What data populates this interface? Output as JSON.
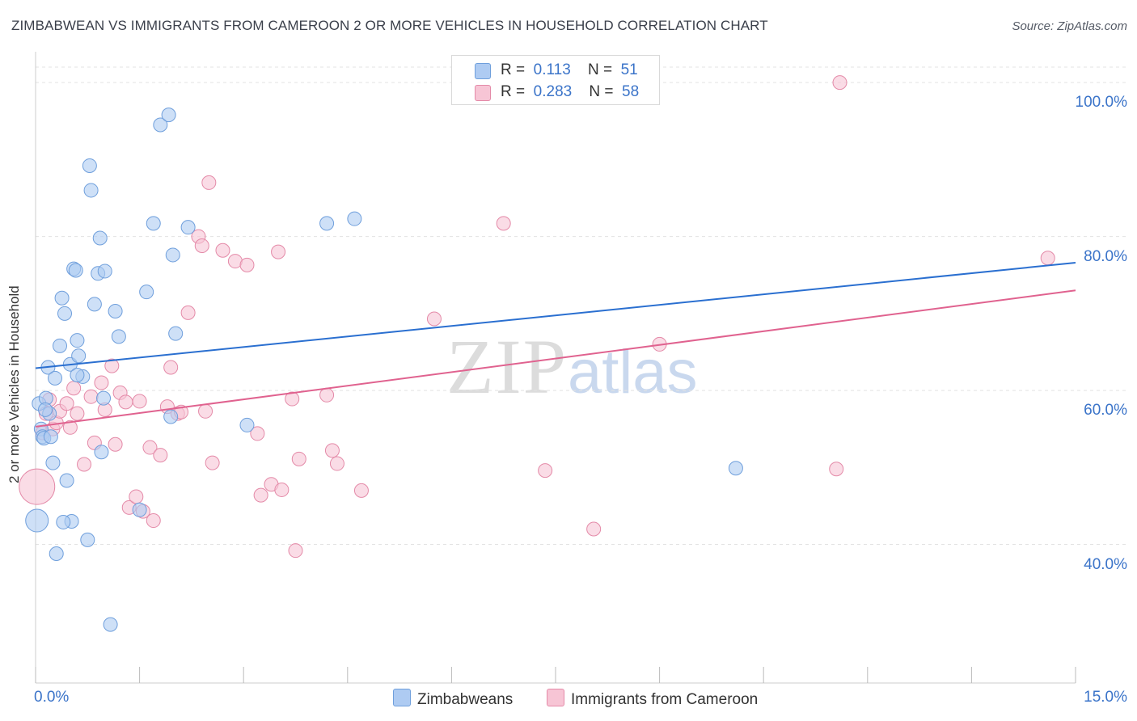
{
  "title": "ZIMBABWEAN VS IMMIGRANTS FROM CAMEROON 2 OR MORE VEHICLES IN HOUSEHOLD CORRELATION CHART",
  "source": "Source: ZipAtlas.com",
  "watermark": {
    "zip": "ZIP",
    "atlas": "atlas"
  },
  "colors": {
    "blue_fill": "#aecbf2",
    "blue_stroke": "#6f9fdc",
    "blue_line": "#2a6fd0",
    "pink_fill": "#f7c5d5",
    "pink_stroke": "#e48aa8",
    "pink_line": "#e0628f",
    "grid": "#e3e3e3",
    "axis_text": "#3b74c9"
  },
  "legend": {
    "rows": [
      {
        "r_label": "R =",
        "r_value": "0.113",
        "n_label": "N =",
        "n_value": "51"
      },
      {
        "r_label": "R =",
        "r_value": "0.283",
        "n_label": "N =",
        "n_value": "58"
      }
    ]
  },
  "bottom_legend": {
    "series1": "Zimbabweans",
    "series2": "Immigrants from Cameroon"
  },
  "chart_data": {
    "type": "scatter",
    "title": "ZIMBABWEAN VS IMMIGRANTS FROM CAMEROON 2 OR MORE VEHICLES IN HOUSEHOLD CORRELATION CHART",
    "xlabel": "",
    "ylabel": "2 or more Vehicles in Household",
    "xlim": [
      0,
      15
    ],
    "ylim": [
      22,
      104
    ],
    "x_tick_labels": [
      "0.0%",
      "15.0%"
    ],
    "y_ticks": [
      40,
      60,
      80,
      100
    ],
    "y_tick_labels": [
      "40.0%",
      "60.0%",
      "80.0%",
      "100.0%"
    ],
    "series": [
      {
        "name": "Zimbabweans",
        "R": 0.113,
        "N": 51,
        "trend": {
          "x": [
            0,
            15
          ],
          "y": [
            62.9,
            76.6
          ]
        },
        "points": [
          [
            0.05,
            58.3
          ],
          [
            0.08,
            55.0
          ],
          [
            0.1,
            54.0
          ],
          [
            0.12,
            53.8
          ],
          [
            0.15,
            59.0
          ],
          [
            0.18,
            63.0
          ],
          [
            0.2,
            57.0
          ],
          [
            0.25,
            50.6
          ],
          [
            0.28,
            61.6
          ],
          [
            0.35,
            65.8
          ],
          [
            0.38,
            72.0
          ],
          [
            0.42,
            70.0
          ],
          [
            0.45,
            48.3
          ],
          [
            0.5,
            63.4
          ],
          [
            0.52,
            43.0
          ],
          [
            0.55,
            75.8
          ],
          [
            0.58,
            75.6
          ],
          [
            0.6,
            66.5
          ],
          [
            0.62,
            64.5
          ],
          [
            0.68,
            61.8
          ],
          [
            0.75,
            40.6
          ],
          [
            0.78,
            89.2
          ],
          [
            0.8,
            86.0
          ],
          [
            0.85,
            71.2
          ],
          [
            0.9,
            75.2
          ],
          [
            0.93,
            79.8
          ],
          [
            0.95,
            52.0
          ],
          [
            0.98,
            59.0
          ],
          [
            1.0,
            75.5
          ],
          [
            1.08,
            29.6
          ],
          [
            1.15,
            70.3
          ],
          [
            1.2,
            67.0
          ],
          [
            1.5,
            44.5
          ],
          [
            1.6,
            72.8
          ],
          [
            1.7,
            81.7
          ],
          [
            1.8,
            94.5
          ],
          [
            1.92,
            95.8
          ],
          [
            1.95,
            56.6
          ],
          [
            1.98,
            77.6
          ],
          [
            2.02,
            67.4
          ],
          [
            2.2,
            81.2
          ],
          [
            3.05,
            55.5
          ],
          [
            4.2,
            81.7
          ],
          [
            4.6,
            82.3
          ],
          [
            10.1,
            49.9
          ],
          [
            0.02,
            43.1
          ],
          [
            0.3,
            38.8
          ],
          [
            0.4,
            42.9
          ],
          [
            0.22,
            54.0
          ],
          [
            0.14,
            57.5
          ],
          [
            0.6,
            62.0
          ]
        ]
      },
      {
        "name": "Immigrants from Cameroon",
        "R": 0.283,
        "N": 58,
        "trend": {
          "x": [
            0,
            15
          ],
          "y": [
            55.3,
            73.0
          ]
        },
        "points": [
          [
            0.02,
            47.5
          ],
          [
            0.1,
            54.5
          ],
          [
            0.15,
            57.0
          ],
          [
            0.2,
            58.8
          ],
          [
            0.25,
            55.0
          ],
          [
            0.3,
            55.8
          ],
          [
            0.35,
            57.3
          ],
          [
            0.45,
            58.3
          ],
          [
            0.5,
            55.2
          ],
          [
            0.55,
            60.3
          ],
          [
            0.6,
            57.0
          ],
          [
            0.7,
            50.4
          ],
          [
            0.8,
            59.2
          ],
          [
            0.85,
            53.2
          ],
          [
            0.95,
            61.0
          ],
          [
            1.0,
            57.5
          ],
          [
            1.1,
            63.2
          ],
          [
            1.15,
            53.0
          ],
          [
            1.22,
            59.7
          ],
          [
            1.3,
            58.5
          ],
          [
            1.35,
            44.8
          ],
          [
            1.45,
            46.2
          ],
          [
            1.5,
            58.6
          ],
          [
            1.55,
            44.3
          ],
          [
            1.65,
            52.6
          ],
          [
            1.7,
            43.1
          ],
          [
            1.8,
            51.6
          ],
          [
            1.9,
            57.9
          ],
          [
            1.95,
            63.0
          ],
          [
            2.05,
            57.0
          ],
          [
            2.1,
            57.2
          ],
          [
            2.2,
            70.1
          ],
          [
            2.35,
            80.0
          ],
          [
            2.4,
            78.8
          ],
          [
            2.45,
            57.3
          ],
          [
            2.5,
            87.0
          ],
          [
            2.55,
            50.6
          ],
          [
            2.7,
            78.2
          ],
          [
            2.88,
            76.8
          ],
          [
            3.05,
            76.3
          ],
          [
            3.2,
            54.4
          ],
          [
            3.25,
            46.4
          ],
          [
            3.4,
            47.8
          ],
          [
            3.5,
            78.0
          ],
          [
            3.55,
            47.1
          ],
          [
            3.7,
            58.9
          ],
          [
            3.75,
            39.2
          ],
          [
            3.8,
            51.1
          ],
          [
            4.2,
            59.4
          ],
          [
            4.28,
            52.2
          ],
          [
            4.35,
            50.5
          ],
          [
            4.7,
            47.0
          ],
          [
            5.75,
            69.3
          ],
          [
            6.75,
            81.7
          ],
          [
            7.35,
            49.6
          ],
          [
            8.05,
            42.0
          ],
          [
            9.0,
            66.0
          ],
          [
            11.55,
            49.8
          ]
        ],
        "extra_points": [
          [
            11.6,
            100.0
          ],
          [
            14.6,
            77.2
          ]
        ]
      }
    ]
  }
}
